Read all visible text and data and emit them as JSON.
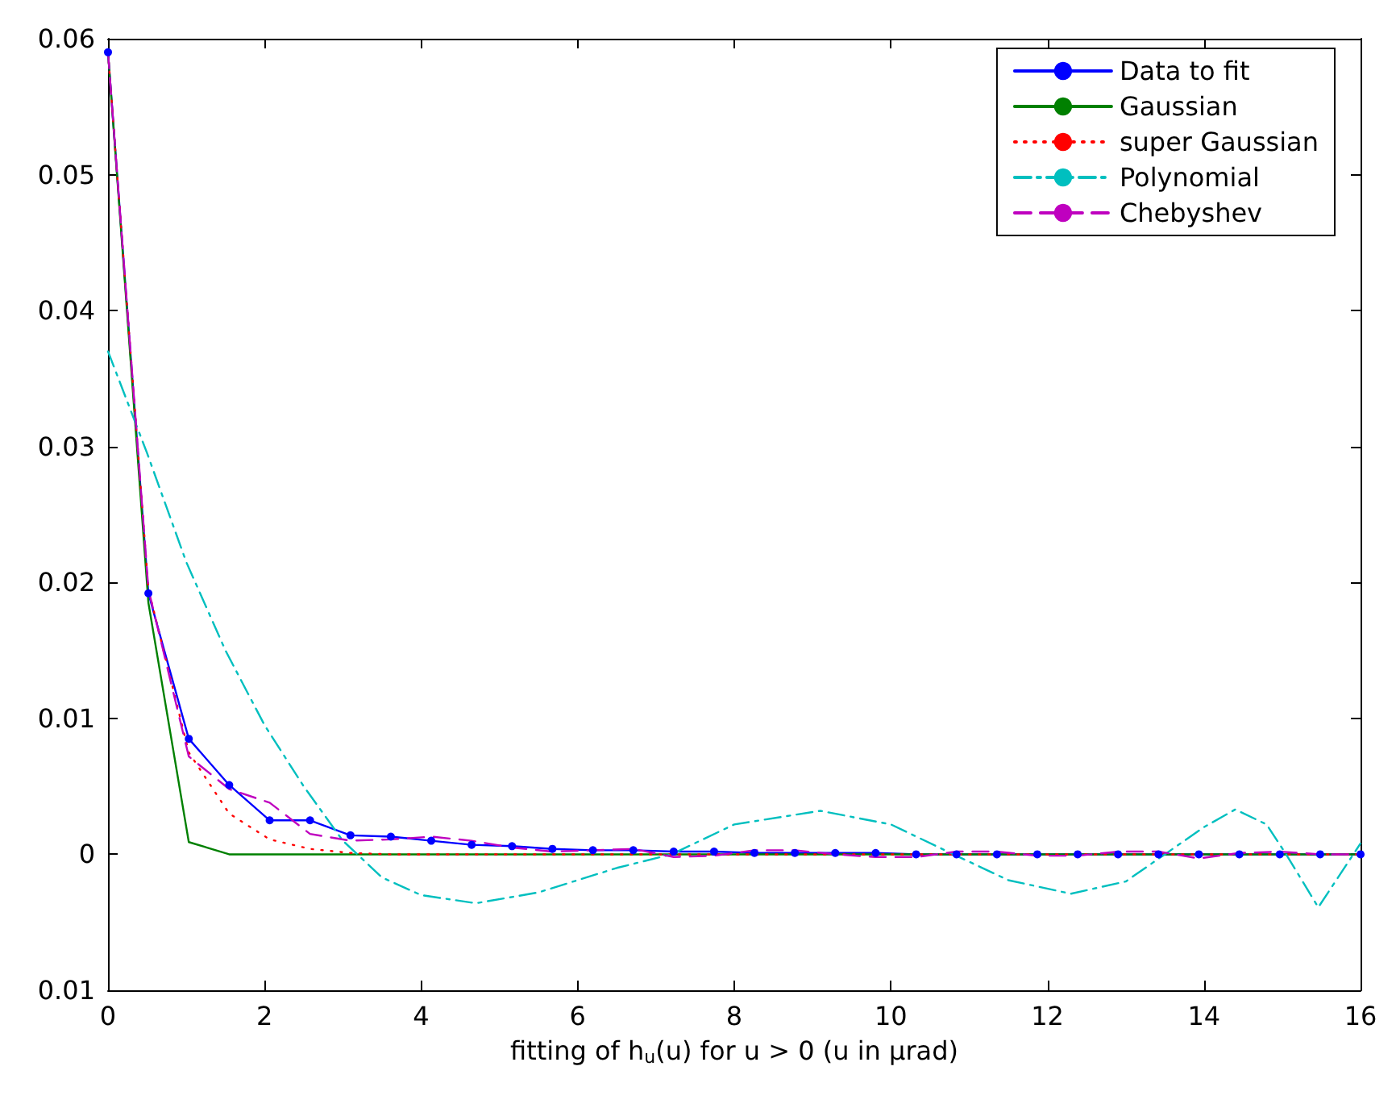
{
  "chart_data": {
    "type": "line",
    "xlabel": "fitting of h$_{u}$(u) for u > 0 (u in µrad)",
    "x": [
      0,
      0.516,
      1.032,
      1.548,
      2.065,
      2.581,
      3.097,
      3.613,
      4.129,
      4.645,
      5.161,
      5.677,
      6.194,
      6.71,
      7.226,
      7.742,
      8.258,
      8.774,
      9.29,
      9.806,
      10.323,
      10.839,
      11.355,
      11.871,
      12.387,
      12.903,
      13.419,
      13.935,
      14.452,
      14.968,
      15.484,
      16
    ],
    "series": [
      {
        "name": "Data to fit",
        "color": "#0000ff",
        "marker": "circle",
        "line_style": "solid",
        "values": [
          0.059,
          0.0192,
          0.0085,
          0.0051,
          0.0025,
          0.0025,
          0.0014,
          0.0013,
          0.001,
          0.0007,
          0.0006,
          0.0004,
          0.0003,
          0.0003,
          0.0002,
          0.0002,
          0.0001,
          0.0001,
          0.0001,
          0.0001,
          0,
          0,
          0,
          0,
          0,
          0,
          0,
          0,
          0,
          0,
          0,
          0
        ]
      },
      {
        "name": "Gaussian",
        "color": "#008000",
        "marker": "none",
        "line_style": "solid",
        "values": [
          0.059,
          0.0185,
          0.0009,
          0,
          0,
          0,
          0,
          0,
          0,
          0,
          0,
          0,
          0,
          0,
          0,
          0,
          0,
          0,
          0,
          0,
          0,
          0,
          0,
          0,
          0,
          0,
          0,
          0,
          0,
          0,
          0,
          0
        ]
      },
      {
        "name": "super Gaussian",
        "color": "#ff0000",
        "marker": "none",
        "line_style": "dotted",
        "values": [
          0.059,
          0.0195,
          0.0075,
          0.003,
          0.0011,
          0.0004,
          0.0001,
          0,
          0,
          0,
          0,
          0,
          0,
          0,
          0,
          0,
          0,
          0,
          0,
          0,
          0,
          0,
          0,
          0,
          0,
          0,
          0,
          0,
          0,
          0,
          0,
          0
        ]
      },
      {
        "name": "Polynomial",
        "color": "#00bfbf",
        "marker": "none",
        "line_style": "dashdot",
        "x": [
          0,
          0.5,
          1,
          1.5,
          2,
          2.5,
          3,
          3.5,
          4,
          4.7,
          5.5,
          6.5,
          7.2,
          8,
          9.1,
          10,
          10.8,
          11.5,
          12.3,
          13,
          13.5,
          14,
          14.4,
          14.8,
          15.05,
          15.46,
          16
        ],
        "values": [
          0.037,
          0.0295,
          0.0215,
          0.015,
          0.0095,
          0.005,
          0.001,
          -0.0017,
          -0.003,
          -0.0036,
          -0.0028,
          -0.001,
          0,
          0.0022,
          0.0032,
          0.0022,
          0,
          -0.0019,
          -0.0029,
          -0.002,
          0,
          0.002,
          0.0033,
          0.0022,
          0,
          -0.0039,
          0.0008
        ]
      },
      {
        "name": "Chebyshev",
        "color": "#bf00bf",
        "marker": "none",
        "line_style": "dashed",
        "values": [
          0.059,
          0.0195,
          0.0072,
          0.0048,
          0.0038,
          0.0015,
          0.001,
          0.0011,
          0.0013,
          0.001,
          0.0005,
          0.0002,
          0.0003,
          0.0004,
          -0.0002,
          -0.0001,
          0.0003,
          0.0003,
          0,
          -0.0002,
          -0.0002,
          0.0002,
          0.0002,
          -0.0001,
          -0.0001,
          0.0002,
          0.0002,
          -0.0003,
          0.0001,
          0.0002,
          0,
          0
        ]
      }
    ],
    "xlim": [
      0,
      16
    ],
    "xticks": [
      0,
      2,
      4,
      6,
      8,
      10,
      12,
      14,
      16
    ],
    "ylim": [
      -0.01,
      0.06
    ],
    "yticks": [
      {
        "value": -0.01,
        "label": "0.01"
      },
      0,
      0.01,
      0.02,
      0.03,
      0.04,
      0.05,
      0.06
    ],
    "grid": false,
    "legend": "top right"
  }
}
